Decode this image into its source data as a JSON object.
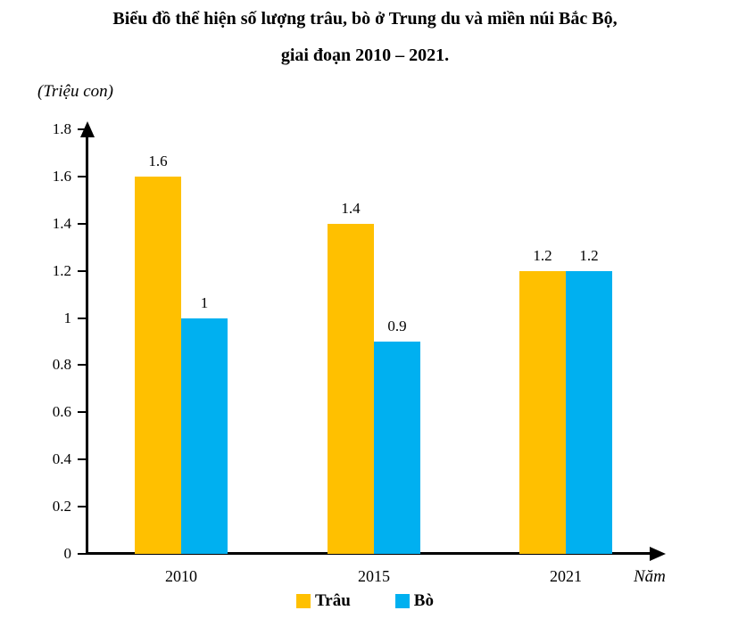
{
  "title": {
    "line1": "Biểu đồ thể hiện số lượng trâu, bò ở Trung du và miền núi Bắc Bộ,",
    "line2": "giai đoạn 2010 – 2021."
  },
  "chart_data": {
    "type": "bar",
    "title": "Biểu đồ thể hiện số lượng trâu, bò ở Trung du và miền núi Bắc Bộ, giai đoạn 2010 – 2021.",
    "unit_label": "(Triệu con)",
    "xlabel": "Năm",
    "categories": [
      "2010",
      "2015",
      "2021"
    ],
    "series": [
      {
        "key": "trau",
        "name": "Trâu",
        "color": "#FFC000",
        "values": [
          1.6,
          1.4,
          1.2
        ]
      },
      {
        "key": "bo",
        "name": "Bò",
        "color": "#00B0F0",
        "values": [
          1.0,
          0.9,
          1.2
        ]
      }
    ],
    "value_labels": {
      "trau": [
        "1.6",
        "1.4",
        "1.2"
      ],
      "bo": [
        "1",
        "0.9",
        "1.2"
      ]
    },
    "ylim": [
      0,
      1.8
    ],
    "ytick_step": 0.2,
    "ytick_labels": [
      "0",
      "0.2",
      "0.4",
      "0.6",
      "0.8",
      "1",
      "1.2",
      "1.4",
      "1.6",
      "1.8"
    ],
    "grid": false,
    "legend_position": "bottom"
  }
}
